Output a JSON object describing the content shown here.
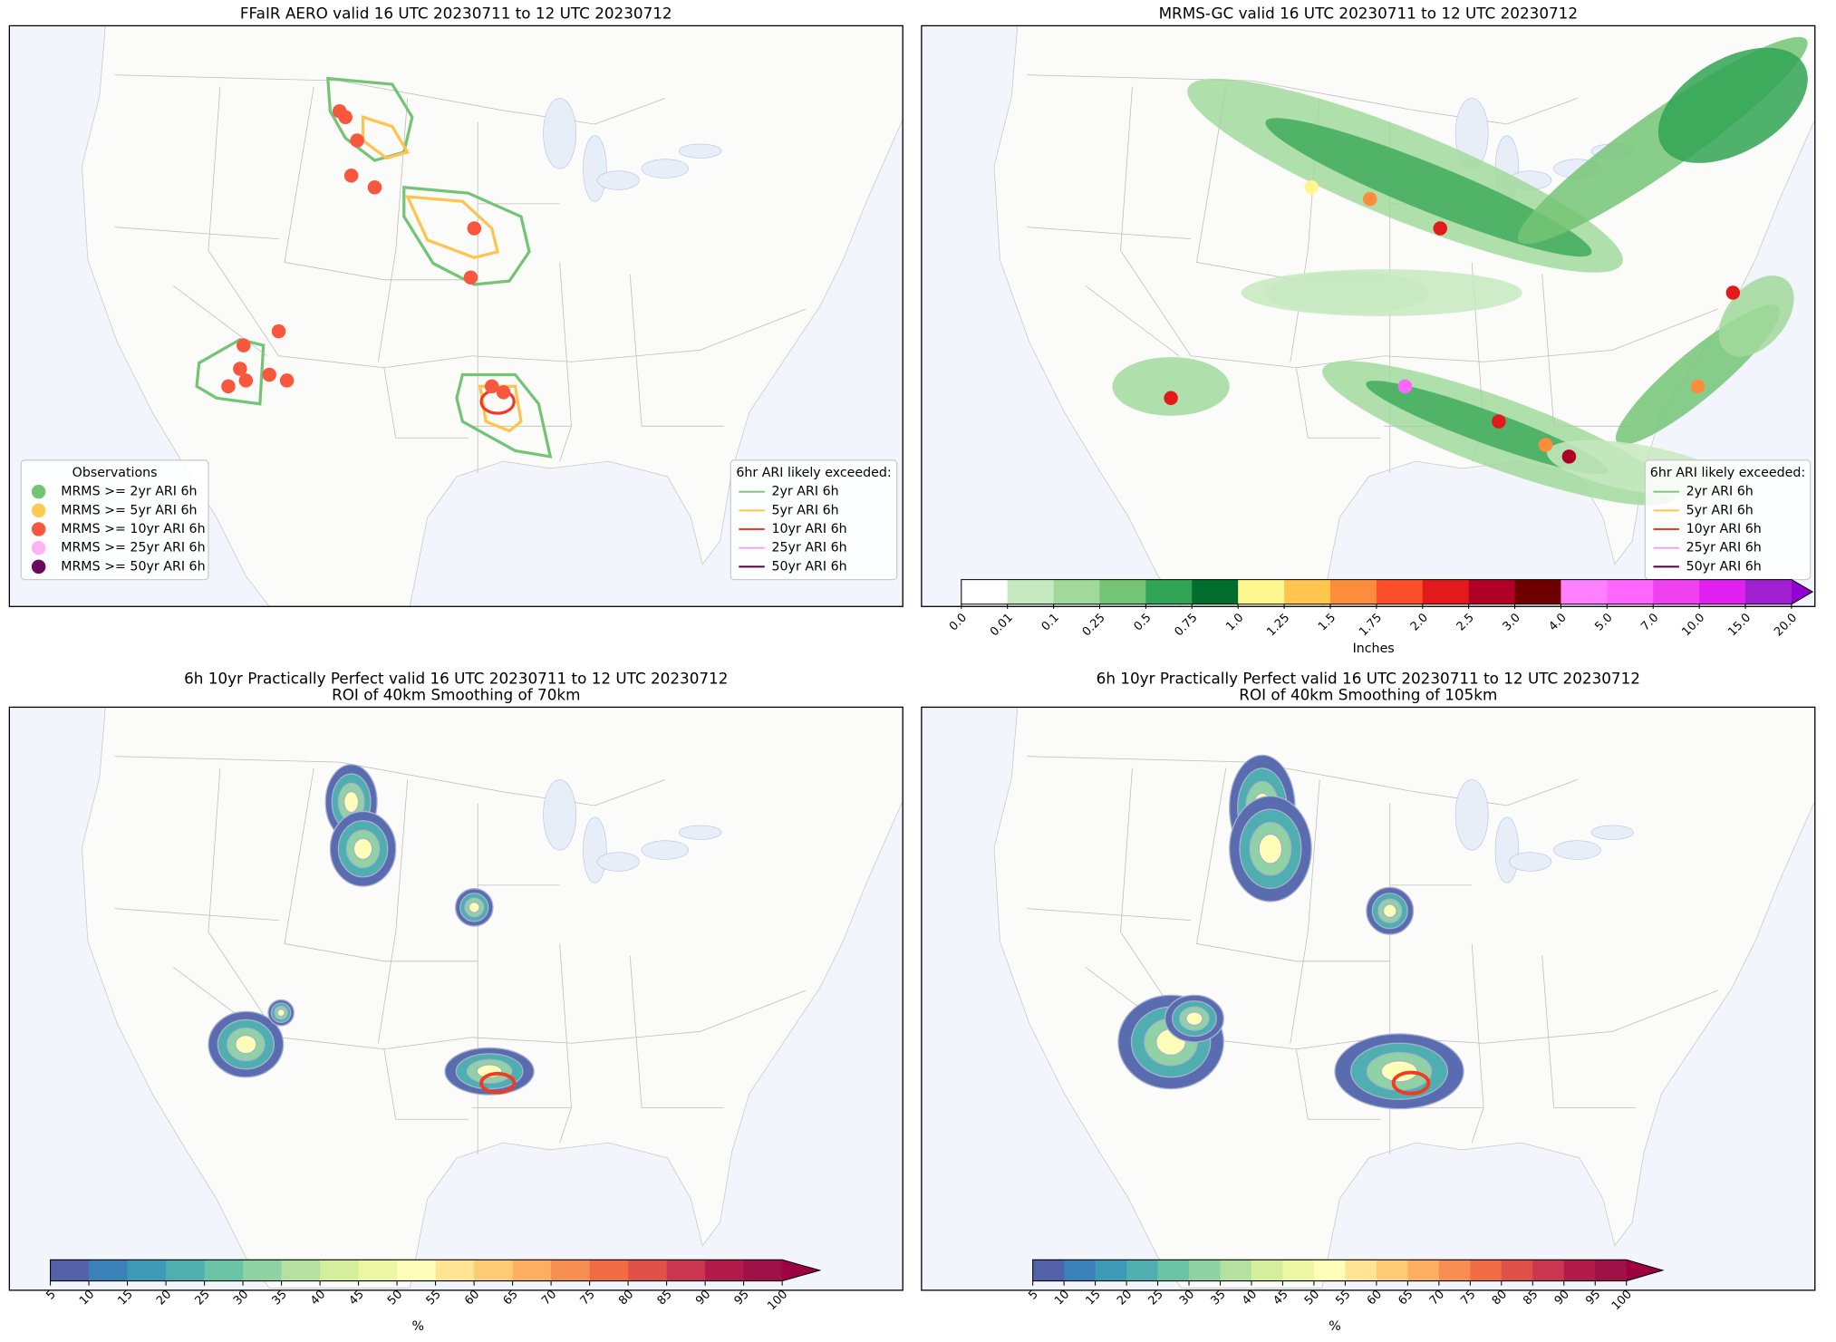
{
  "panels": [
    {
      "title_lines": [
        "FFaIR AERO valid 16 UTC 20230711 to 12 UTC 20230712"
      ],
      "legends": [
        {
          "title": "Observations",
          "marker": "circle",
          "items": [
            {
              "label": "MRMS >= 2yr ARI 6h",
              "color": "#74c476"
            },
            {
              "label": "MRMS >= 5yr ARI 6h",
              "color": "#fecb52"
            },
            {
              "label": "MRMS >= 10yr ARI 6h",
              "color": "#f9573d"
            },
            {
              "label": "MRMS >= 25yr ARI 6h",
              "color": "#ffb3f7"
            },
            {
              "label": "MRMS >= 50yr ARI 6h",
              "color": "#6a0a5f"
            }
          ]
        },
        {
          "title": "6hr ARI likely exceeded:",
          "marker": "line",
          "items": [
            {
              "label": "2yr ARI 6h",
              "color": "#74c476"
            },
            {
              "label": "5yr ARI 6h",
              "color": "#fec44f"
            },
            {
              "label": "10yr ARI 6h",
              "color": "#f03b20"
            },
            {
              "label": "25yr ARI 6h",
              "color": "#f59ef0"
            },
            {
              "label": "50yr ARI 6h",
              "color": "#4b0040"
            }
          ]
        }
      ]
    },
    {
      "title_lines": [
        "MRMS-GC valid 16 UTC 20230711 to 12 UTC 20230712"
      ],
      "legends": [
        {
          "title": "6hr ARI likely exceeded:",
          "marker": "line",
          "items": [
            {
              "label": "2yr ARI 6h",
              "color": "#74c476"
            },
            {
              "label": "5yr ARI 6h",
              "color": "#fec44f"
            },
            {
              "label": "10yr ARI 6h",
              "color": "#f03b20"
            },
            {
              "label": "25yr ARI 6h",
              "color": "#f59ef0"
            },
            {
              "label": "50yr ARI 6h",
              "color": "#4b0040"
            }
          ]
        }
      ],
      "colorbar": {
        "label": "Inches",
        "ticks": [
          "0.0",
          "0.01",
          "0.1",
          "0.25",
          "0.5",
          "0.75",
          "1.0",
          "1.25",
          "1.5",
          "1.75",
          "2.0",
          "2.5",
          "3.0",
          "4.0",
          "5.0",
          "7.0",
          "10.0",
          "15.0",
          "20.0"
        ],
        "colors": [
          "#ffffff",
          "#c7e9c0",
          "#a1d99b",
          "#74c476",
          "#31a354",
          "#006d2c",
          "#fff68f",
          "#ffc54d",
          "#fd8d3c",
          "#fc4e2a",
          "#e31a1c",
          "#b10026",
          "#6e0000",
          "#ff80ff",
          "#ff66ff",
          "#f040f0",
          "#e020f0",
          "#a020d0"
        ],
        "extend_color": "#9400d3"
      }
    },
    {
      "title_lines": [
        "6h 10yr Practically Perfect valid 16 UTC 20230711 to 12 UTC 20230712",
        "ROI of 40km Smoothing of 70km"
      ],
      "colorbar": {
        "label": "%",
        "ticks": [
          "5",
          "10",
          "15",
          "20",
          "25",
          "30",
          "35",
          "40",
          "45",
          "50",
          "55",
          "60",
          "65",
          "70",
          "75",
          "80",
          "85",
          "90",
          "95",
          "100"
        ],
        "colors": [
          "#5361a9",
          "#3a80b9",
          "#3d9ab6",
          "#4fafb0",
          "#6bc4a6",
          "#8fd2a4",
          "#b4e0a0",
          "#d5ee9b",
          "#ecf7a4",
          "#fefeb8",
          "#fee493",
          "#fecb75",
          "#fdae61",
          "#f98e52",
          "#f16c43",
          "#e25149",
          "#cc3550",
          "#b21a4b",
          "#a01147"
        ],
        "extend_color": "#9e0142"
      }
    },
    {
      "title_lines": [
        "6h 10yr Practically Perfect valid 16 UTC 20230711 to 12 UTC 20230712",
        "ROI of 40km Smoothing of 105km"
      ],
      "colorbar": {
        "label": "%",
        "ticks": [
          "5",
          "10",
          "15",
          "20",
          "25",
          "30",
          "35",
          "40",
          "45",
          "50",
          "55",
          "60",
          "65",
          "70",
          "75",
          "80",
          "85",
          "90",
          "95",
          "100"
        ],
        "colors": [
          "#5361a9",
          "#3a80b9",
          "#3d9ab6",
          "#4fafb0",
          "#6bc4a6",
          "#8fd2a4",
          "#b4e0a0",
          "#d5ee9b",
          "#ecf7a4",
          "#fefeb8",
          "#fee493",
          "#fecb75",
          "#fdae61",
          "#f98e52",
          "#f16c43",
          "#e25149",
          "#cc3550",
          "#b21a4b",
          "#a01147"
        ],
        "extend_color": "#9e0142"
      }
    }
  ]
}
